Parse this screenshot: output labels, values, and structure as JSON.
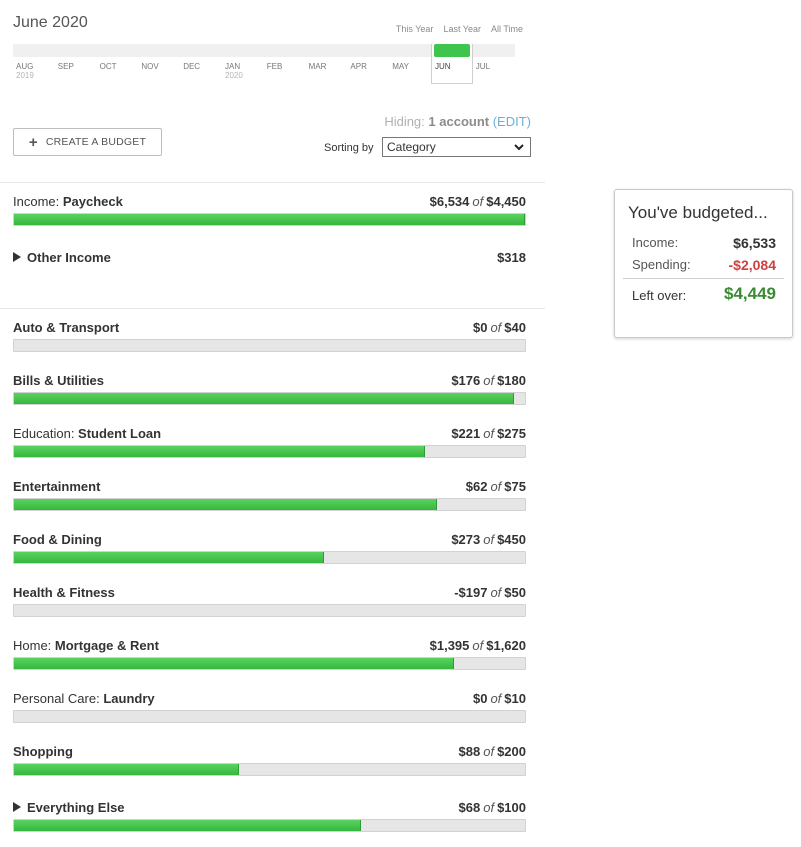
{
  "header": {
    "title": "June 2020",
    "range_links": [
      "This Year",
      "Last Year",
      "All Time"
    ]
  },
  "timeline": {
    "months": [
      {
        "label": "AUG",
        "year": "2019",
        "current": false
      },
      {
        "label": "SEP",
        "year": "",
        "current": false
      },
      {
        "label": "OCT",
        "year": "",
        "current": false
      },
      {
        "label": "NOV",
        "year": "",
        "current": false
      },
      {
        "label": "DEC",
        "year": "",
        "current": false
      },
      {
        "label": "JAN",
        "year": "2020",
        "current": false
      },
      {
        "label": "FEB",
        "year": "",
        "current": false
      },
      {
        "label": "MAR",
        "year": "",
        "current": false
      },
      {
        "label": "APR",
        "year": "",
        "current": false
      },
      {
        "label": "MAY",
        "year": "",
        "current": false
      },
      {
        "label": "JUN",
        "year": "",
        "current": true
      },
      {
        "label": "JUL",
        "year": "",
        "current": false
      }
    ]
  },
  "hiding": {
    "prefix": "Hiding:",
    "count": "1 account",
    "edit": "(EDIT)"
  },
  "toolbar": {
    "create_label": "CREATE A BUDGET",
    "sort_label": "Sorting by",
    "sort_value": "Category"
  },
  "income": {
    "paycheck": {
      "group": "Income: ",
      "name": "Paycheck",
      "amount": "$6,534",
      "of": "of",
      "budget": "$4,450",
      "progress": 1.0
    },
    "other": {
      "name": "Other Income",
      "amount": "$318"
    }
  },
  "categories": [
    {
      "group": "",
      "name": "Auto & Transport",
      "amount": "$0",
      "of": "of",
      "budget": "$40",
      "progress": 0.0
    },
    {
      "group": "",
      "name": "Bills & Utilities",
      "amount": "$176",
      "of": "of",
      "budget": "$180",
      "progress": 0.978
    },
    {
      "group": "Education: ",
      "name": "Student Loan",
      "amount": "$221",
      "of": "of",
      "budget": "$275",
      "progress": 0.804
    },
    {
      "group": "",
      "name": "Entertainment",
      "amount": "$62",
      "of": "of",
      "budget": "$75",
      "progress": 0.827
    },
    {
      "group": "",
      "name": "Food & Dining",
      "amount": "$273",
      "of": "of",
      "budget": "$450",
      "progress": 0.607
    },
    {
      "group": "",
      "name": "Health & Fitness",
      "amount": "-$197",
      "of": "of",
      "budget": "$50",
      "progress": 0.0
    },
    {
      "group": "Home: ",
      "name": "Mortgage & Rent",
      "amount": "$1,395",
      "of": "of",
      "budget": "$1,620",
      "progress": 0.861
    },
    {
      "group": "Personal Care: ",
      "name": "Laundry",
      "amount": "$0",
      "of": "of",
      "budget": "$10",
      "progress": 0.0
    },
    {
      "group": "",
      "name": "Shopping",
      "amount": "$88",
      "of": "of",
      "budget": "$200",
      "progress": 0.44
    }
  ],
  "everything_else": {
    "name": "Everything Else",
    "amount": "$68",
    "of": "of",
    "budget": "$100",
    "progress": 0.68
  },
  "summary": {
    "title": "You've budgeted...",
    "income_label": "Income:",
    "income_value": "$6,533",
    "spending_label": "Spending:",
    "spending_value": "-$2,084",
    "leftover_label": "Left over:",
    "leftover_value": "$4,449"
  },
  "colors": {
    "green": "#3fc44d",
    "negative": "#d04040",
    "positive": "#3a8a34",
    "link": "#6ab0d8"
  }
}
